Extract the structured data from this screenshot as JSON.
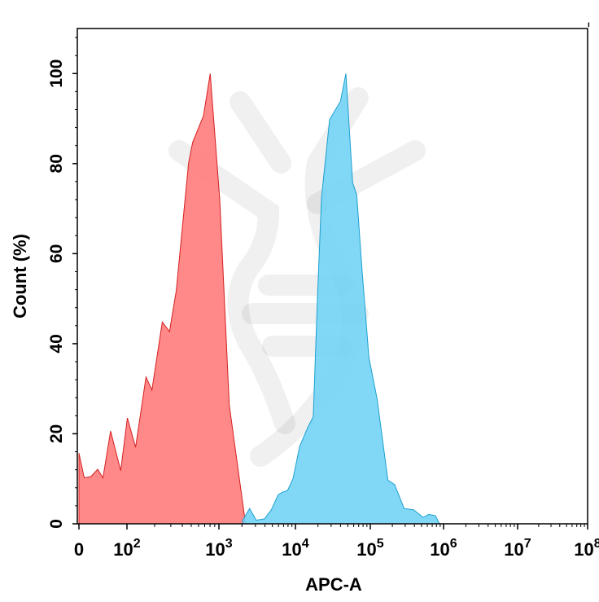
{
  "chart_data": {
    "type": "area",
    "title": "",
    "xlabel": "APC-A",
    "ylabel": "Count (%)",
    "x_scale": "biexponential",
    "xlim": [
      0,
      100000000
    ],
    "ylim": [
      0,
      110
    ],
    "grid": false,
    "legend": "none",
    "y_ticks": [
      "0",
      "20",
      "40",
      "60",
      "80",
      "100"
    ],
    "x_ticks": [
      {
        "base": "0",
        "exp": ""
      },
      {
        "base": "10",
        "exp": "2"
      },
      {
        "base": "10",
        "exp": "3"
      },
      {
        "base": "10",
        "exp": "4"
      },
      {
        "base": "10",
        "exp": "5"
      },
      {
        "base": "10",
        "exp": "6"
      },
      {
        "base": "10",
        "exp": "7"
      },
      {
        "base": "10",
        "exp": "8"
      }
    ],
    "series": [
      {
        "color": "#ff7b7b",
        "stroke": "#d42020",
        "points": [
          [
            0,
            15.7
          ],
          [
            11,
            10.2
          ],
          [
            25,
            10.5
          ],
          [
            39,
            12.1
          ],
          [
            50,
            10.2
          ],
          [
            66,
            20.6
          ],
          [
            87,
            11.8
          ],
          [
            101,
            23.5
          ],
          [
            124,
            17.0
          ],
          [
            161,
            32.6
          ],
          [
            187,
            29.7
          ],
          [
            242,
            44.8
          ],
          [
            290,
            42.7
          ],
          [
            344,
            51.8
          ],
          [
            468,
            80.1
          ],
          [
            518,
            84.7
          ],
          [
            679,
            90.6
          ],
          [
            804,
            100
          ],
          [
            1025,
            72
          ],
          [
            1365,
            26.4
          ],
          [
            2230,
            0
          ]
        ]
      },
      {
        "color": "#72d4f5",
        "stroke": "#1e9fcf",
        "points": [
          [
            2050,
            0.8
          ],
          [
            2520,
            3.4
          ],
          [
            3080,
            0.8
          ],
          [
            3940,
            1.1
          ],
          [
            4830,
            3.1
          ],
          [
            5930,
            6.4
          ],
          [
            6710,
            7.0
          ],
          [
            7890,
            7.4
          ],
          [
            9290,
            10.0
          ],
          [
            11400,
            17.2
          ],
          [
            14700,
            21.5
          ],
          [
            17300,
            23.8
          ],
          [
            19600,
            49.4
          ],
          [
            22300,
            72.4
          ],
          [
            28600,
            89.8
          ],
          [
            39900,
            93.8
          ],
          [
            47200,
            100
          ],
          [
            58100,
            75.7
          ],
          [
            65800,
            73.1
          ],
          [
            77800,
            56
          ],
          [
            95900,
            36.9
          ],
          [
            124000,
            27.7
          ],
          [
            174000,
            9.7
          ],
          [
            215000,
            8.7
          ],
          [
            290000,
            3.4
          ],
          [
            391000,
            3.1
          ],
          [
            527000,
            1.4
          ],
          [
            626000,
            2.1
          ],
          [
            774000,
            1.8
          ],
          [
            880000,
            0
          ]
        ]
      }
    ]
  }
}
